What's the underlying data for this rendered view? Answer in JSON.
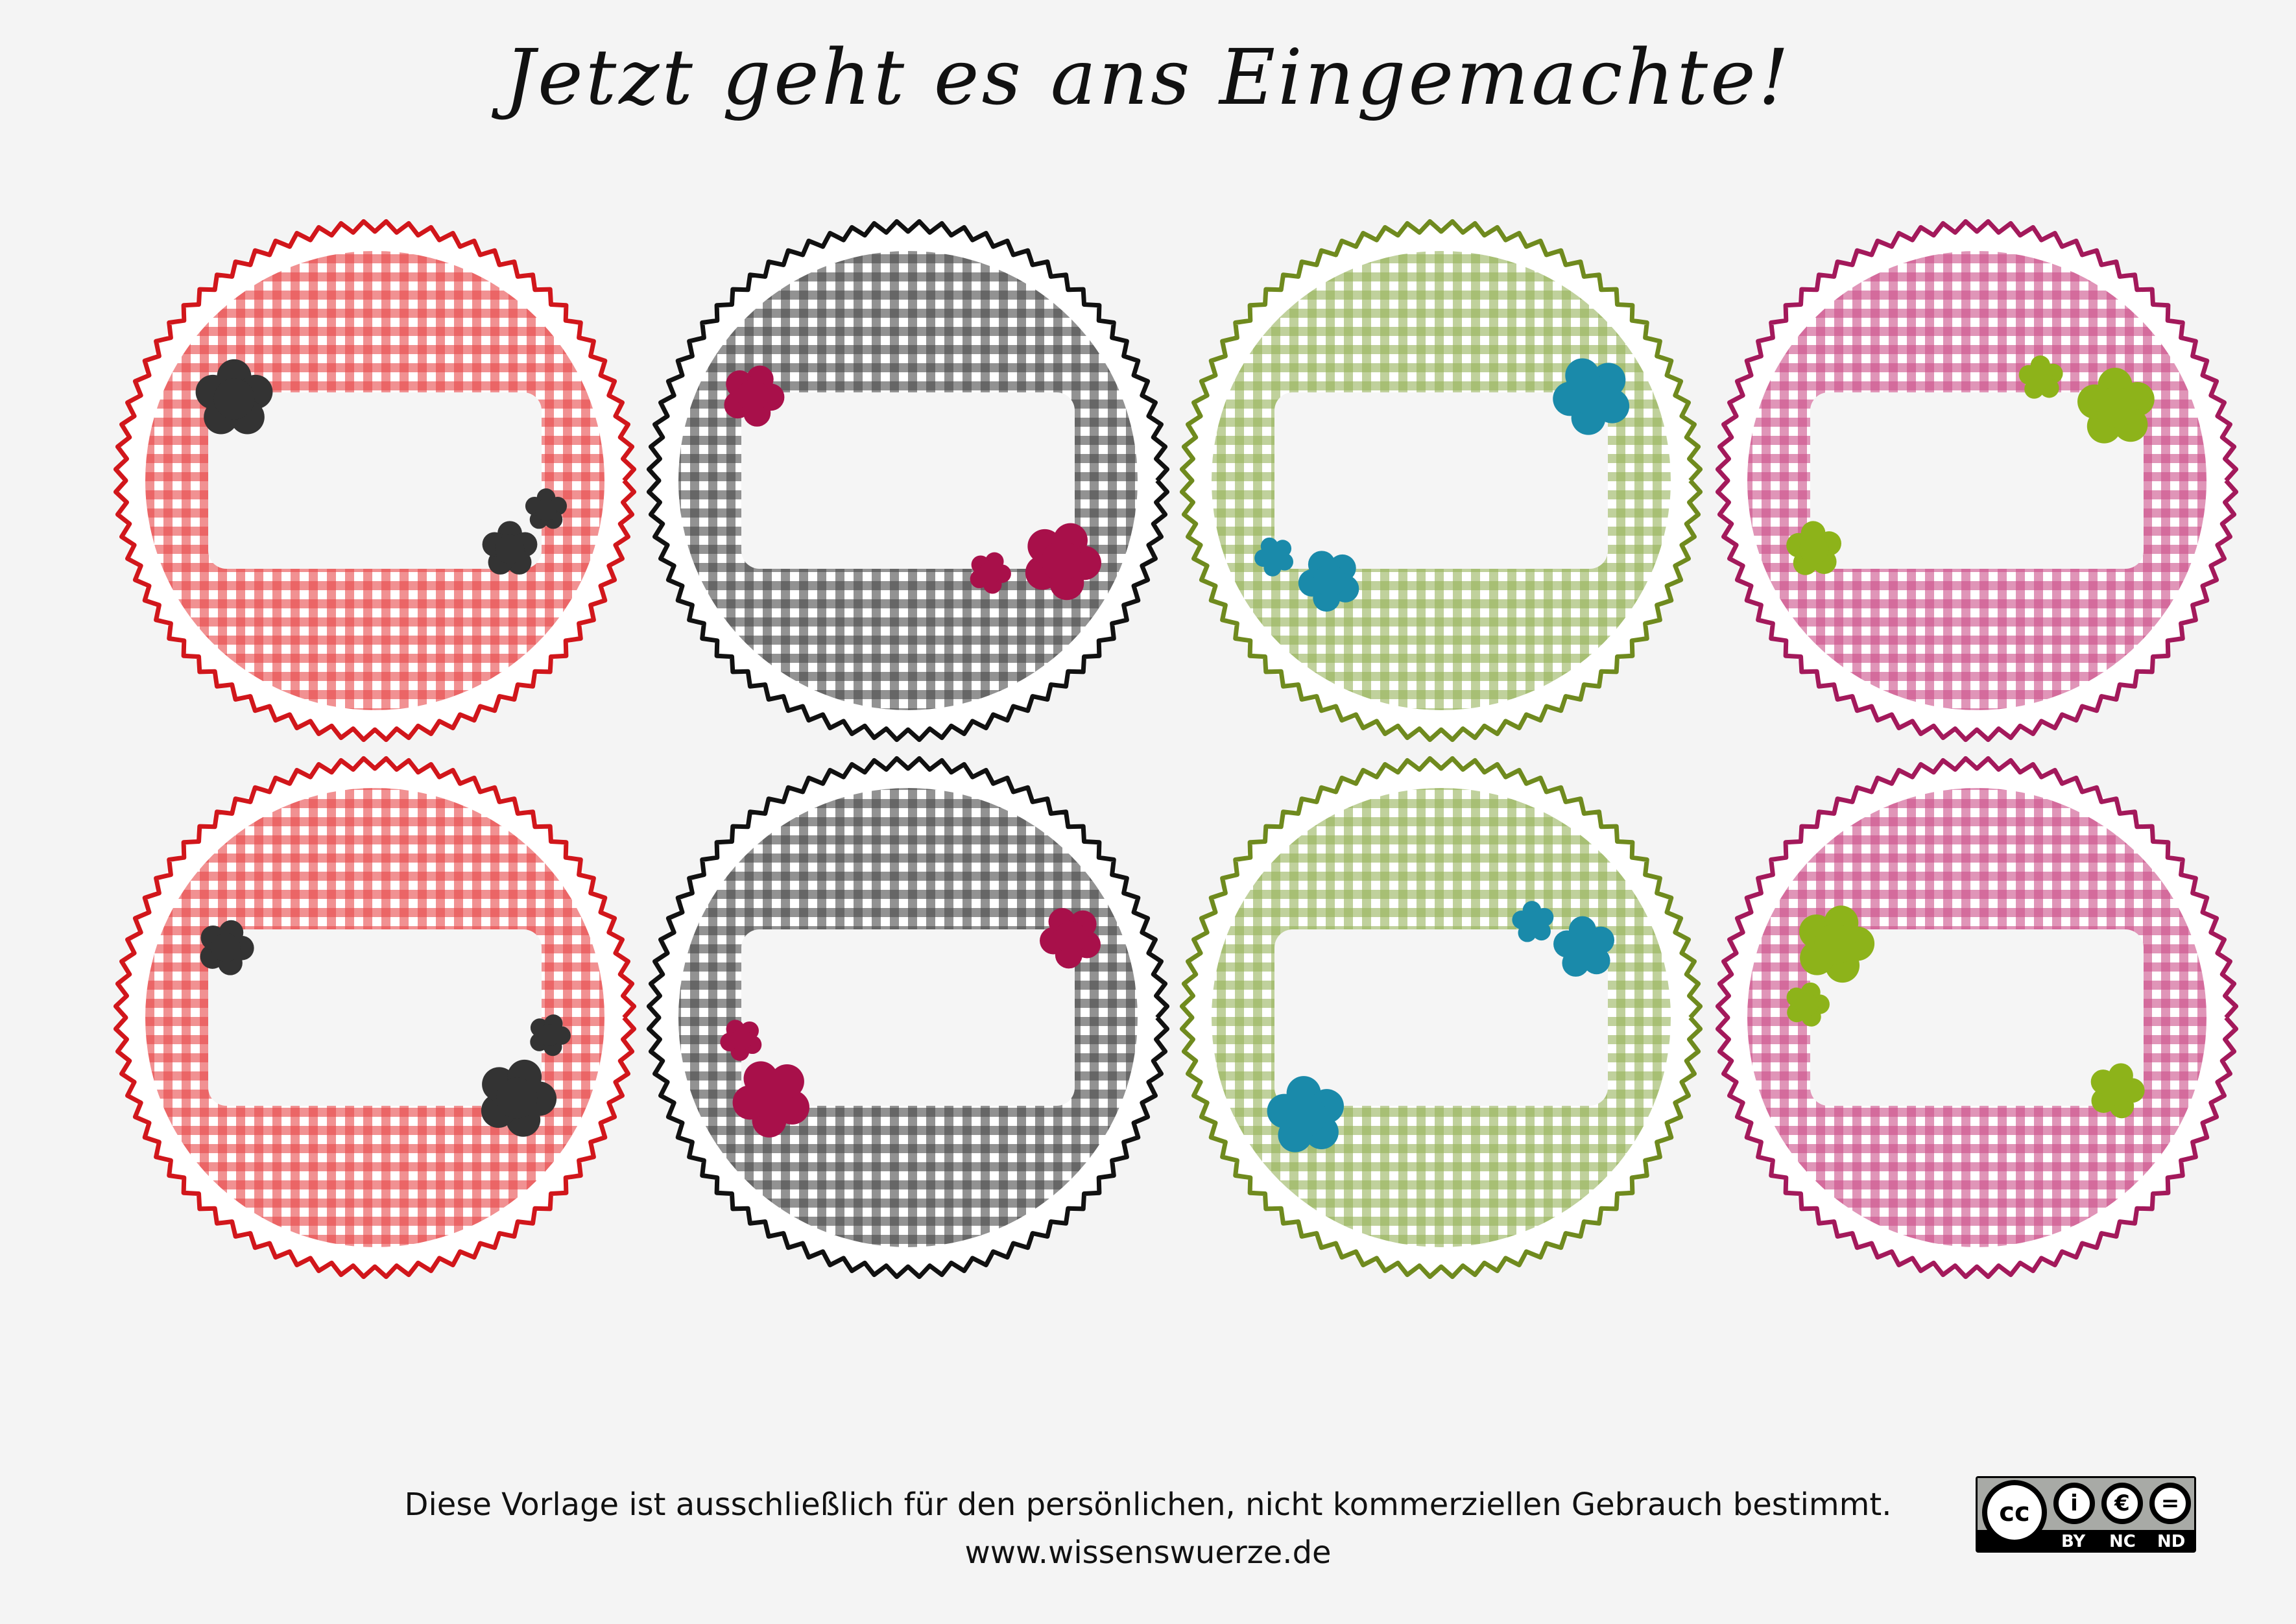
{
  "title": "Jetzt geht es ans Eingemachte!",
  "footer": {
    "note": "Diese Vorlage ist ausschließlich für den persönlichen, nicht kommerziellen Gebrauch bestimmt.",
    "url": "www.wissenswuerze.de"
  },
  "license_badge": {
    "icons": [
      "cc-icon",
      "by-person-icon",
      "nc-euro-icon",
      "nd-equals-icon"
    ],
    "cc": "cc",
    "by": "BY",
    "nc": "NC",
    "nd": "ND"
  },
  "labels": [
    {
      "theme": "red",
      "border": "#d1161b",
      "gingham": "#e8474a",
      "flower": "#333333"
    },
    {
      "theme": "black",
      "border": "#111111",
      "gingham": "#4a4a4a",
      "flower": "#a8104a"
    },
    {
      "theme": "green",
      "border": "#6f8a1e",
      "gingham": "#96b35a",
      "flower": "#1a8aaa"
    },
    {
      "theme": "magenta",
      "border": "#a3195b",
      "gingham": "#cc4f88",
      "flower": "#8db31a"
    },
    {
      "theme": "red",
      "border": "#d1161b",
      "gingham": "#e8474a",
      "flower": "#333333"
    },
    {
      "theme": "black",
      "border": "#111111",
      "gingham": "#4a4a4a",
      "flower": "#a8104a"
    },
    {
      "theme": "green",
      "border": "#6f8a1e",
      "gingham": "#96b35a",
      "flower": "#1a8aaa"
    },
    {
      "theme": "magenta",
      "border": "#a3195b",
      "gingham": "#cc4f88",
      "flower": "#8db31a"
    }
  ]
}
